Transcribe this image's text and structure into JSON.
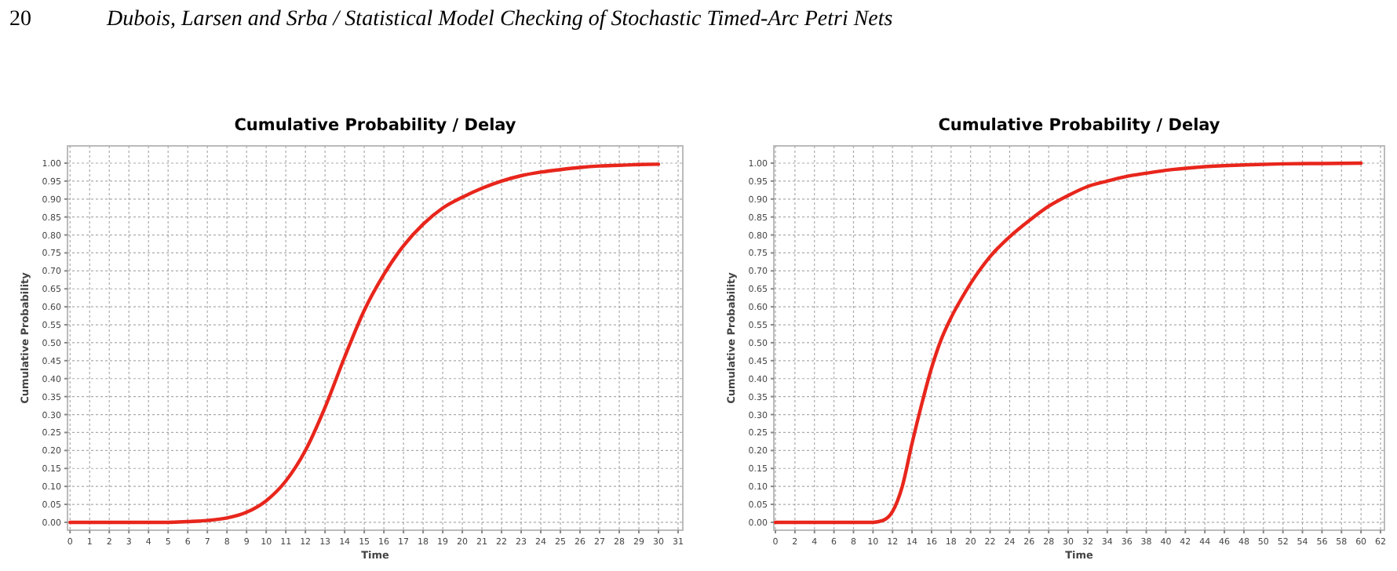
{
  "chart_data": [
    {
      "type": "line",
      "title": "Cumulative Probability / Delay",
      "xlabel": "Time",
      "ylabel": "Cumulative Probability",
      "annotations": [
        "20",
        "Dubois, Larsen and Srba / Statistical Model Checking of Stochastic Timed-Arc Petri Nets"
      ],
      "x": [
        0,
        1,
        2,
        3,
        4,
        5,
        6,
        7,
        8,
        9,
        10,
        11,
        12,
        13,
        14,
        15,
        16,
        17,
        18,
        19,
        20,
        21,
        22,
        23,
        24,
        25,
        26,
        27,
        28,
        29,
        30
      ],
      "series": [
        {
          "color": "#e8261c",
          "values": [
            0,
            0,
            0,
            0,
            0,
            0,
            0.002,
            0.005,
            0.012,
            0.028,
            0.06,
            0.115,
            0.2,
            0.32,
            0.46,
            0.59,
            0.69,
            0.77,
            0.83,
            0.875,
            0.905,
            0.93,
            0.95,
            0.965,
            0.975,
            0.982,
            0.988,
            0.992,
            0.994,
            0.996,
            0.997
          ]
        }
      ],
      "xlim": [
        -0.13,
        31.24
      ],
      "ylim": [
        -0.022,
        1.048
      ],
      "xticks": [
        0,
        1,
        2,
        3,
        4,
        5,
        6,
        7,
        8,
        9,
        10,
        11,
        12,
        13,
        14,
        15,
        16,
        17,
        18,
        19,
        20,
        21,
        22,
        23,
        24,
        25,
        26,
        27,
        28,
        29,
        30,
        31
      ],
      "yticks": [
        {
          "value": 0,
          "label": "0.00"
        },
        {
          "value": 0.05,
          "label": "0.05"
        },
        {
          "value": 0.1,
          "label": "0.10"
        },
        {
          "value": 0.15,
          "label": "0.15"
        },
        {
          "value": 0.2,
          "label": "0.20"
        },
        {
          "value": 0.25,
          "label": "0.25"
        },
        {
          "value": 0.3,
          "label": "0.30"
        },
        {
          "value": 0.35,
          "label": "0.35"
        },
        {
          "value": 0.4,
          "label": "0.40"
        },
        {
          "value": 0.45,
          "label": "0.45"
        },
        {
          "value": 0.5,
          "label": "0.50"
        },
        {
          "value": 0.55,
          "label": "0.55"
        },
        {
          "value": 0.6,
          "label": "0.60"
        },
        {
          "value": 0.65,
          "label": "0.65"
        },
        {
          "value": 0.7,
          "label": "0.70"
        },
        {
          "value": 0.75,
          "label": "0.75"
        },
        {
          "value": 0.8,
          "label": "0.80"
        },
        {
          "value": 0.85,
          "label": "0.85"
        },
        {
          "value": 0.9,
          "label": "0.90"
        },
        {
          "value": 0.95,
          "label": "0.95"
        },
        {
          "value": 1,
          "label": "1.00"
        }
      ],
      "grid": true
    },
    {
      "type": "line",
      "title": "Cumulative Probability / Delay",
      "xlabel": "Time",
      "ylabel": "Cumulative Probability",
      "x": [
        0,
        10,
        11,
        12,
        13,
        14,
        15,
        16,
        17,
        18,
        19,
        20,
        22,
        24,
        26,
        28,
        30,
        32,
        34,
        36,
        38,
        40,
        44,
        48,
        52,
        56,
        60
      ],
      "series": [
        {
          "color": "#e8261c",
          "values": [
            0,
            0,
            0.005,
            0.03,
            0.1,
            0.22,
            0.33,
            0.43,
            0.51,
            0.57,
            0.62,
            0.665,
            0.74,
            0.795,
            0.84,
            0.88,
            0.91,
            0.935,
            0.95,
            0.963,
            0.972,
            0.98,
            0.99,
            0.995,
            0.998,
            0.999,
            1.0
          ]
        }
      ],
      "xlim": [
        -0.16,
        62.4
      ],
      "ylim": [
        -0.022,
        1.048
      ],
      "xticks": [
        0,
        2,
        4,
        6,
        8,
        10,
        12,
        14,
        16,
        18,
        20,
        22,
        24,
        26,
        28,
        30,
        32,
        34,
        36,
        38,
        40,
        42,
        44,
        46,
        48,
        50,
        52,
        54,
        56,
        58,
        60,
        62
      ],
      "yticks": [
        {
          "value": 0,
          "label": "0.00"
        },
        {
          "value": 0.05,
          "label": "0.05"
        },
        {
          "value": 0.1,
          "label": "0.10"
        },
        {
          "value": 0.15,
          "label": "0.15"
        },
        {
          "value": 0.2,
          "label": "0.20"
        },
        {
          "value": 0.25,
          "label": "0.25"
        },
        {
          "value": 0.3,
          "label": "0.30"
        },
        {
          "value": 0.35,
          "label": "0.35"
        },
        {
          "value": 0.4,
          "label": "0.40"
        },
        {
          "value": 0.45,
          "label": "0.45"
        },
        {
          "value": 0.5,
          "label": "0.50"
        },
        {
          "value": 0.55,
          "label": "0.55"
        },
        {
          "value": 0.6,
          "label": "0.60"
        },
        {
          "value": 0.65,
          "label": "0.65"
        },
        {
          "value": 0.7,
          "label": "0.70"
        },
        {
          "value": 0.75,
          "label": "0.75"
        },
        {
          "value": 0.8,
          "label": "0.80"
        },
        {
          "value": 0.85,
          "label": "0.85"
        },
        {
          "value": 0.9,
          "label": "0.90"
        },
        {
          "value": 0.95,
          "label": "0.95"
        },
        {
          "value": 1,
          "label": "1.00"
        }
      ],
      "grid": true
    }
  ]
}
